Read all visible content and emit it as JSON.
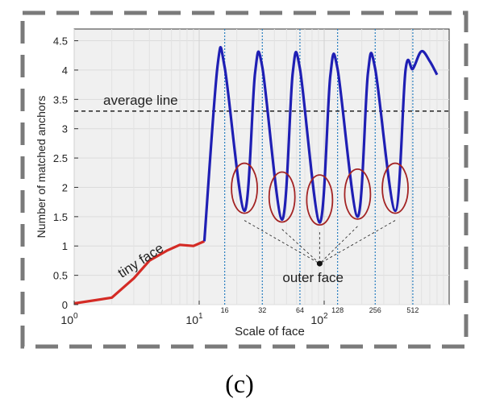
{
  "caption": "(c)",
  "chart_data": {
    "type": "line",
    "xlabel": "Scale of face",
    "ylabel": "Number of matched anchors",
    "x_scale": "log10",
    "xlim": [
      1,
      1000
    ],
    "ylim": [
      0,
      4.7
    ],
    "y_ticks": [
      0,
      0.5,
      1,
      1.5,
      2,
      2.5,
      3,
      3.5,
      4,
      4.5
    ],
    "y_tick_labels": [
      "0",
      "0.5",
      "1",
      "1.5",
      "2",
      "2.5",
      "3",
      "3.5",
      "4",
      "4.5"
    ],
    "x_major_ticks": [
      {
        "base": "10",
        "exp": "0",
        "value": 1
      },
      {
        "base": "10",
        "exp": "1",
        "value": 10
      },
      {
        "base": "10",
        "exp": "2",
        "value": 100
      }
    ],
    "anchor_scales": [
      16,
      32,
      64,
      128,
      256,
      512
    ],
    "anchor_scale_labels": [
      "16",
      "32",
      "64",
      "128",
      "256",
      "512"
    ],
    "grid": true,
    "average_line": {
      "label": "average line",
      "value": 3.3
    },
    "annotations": {
      "tiny_face": "tiny face",
      "outer_face": "outer face"
    },
    "tiny_face_segment": {
      "color": "#d42b25",
      "points": [
        [
          1,
          0.02
        ],
        [
          2,
          0.12
        ],
        [
          3,
          0.45
        ],
        [
          4,
          0.75
        ],
        [
          5.5,
          0.92
        ],
        [
          7,
          1.02
        ],
        [
          9,
          1.0
        ],
        [
          11,
          1.08
        ]
      ]
    },
    "anchor_segment": {
      "color": "#1f1fb4",
      "points": [
        [
          11,
          1.08
        ],
        [
          14,
          4.05
        ],
        [
          16,
          4.05
        ],
        [
          23,
          1.6
        ],
        [
          28,
          3.95
        ],
        [
          32,
          4.05
        ],
        [
          46,
          1.45
        ],
        [
          56,
          3.95
        ],
        [
          64,
          4.02
        ],
        [
          92,
          1.4
        ],
        [
          112,
          3.9
        ],
        [
          128,
          4.02
        ],
        [
          185,
          1.5
        ],
        [
          224,
          3.95
        ],
        [
          256,
          4.02
        ],
        [
          370,
          1.6
        ],
        [
          448,
          4.0
        ],
        [
          512,
          4.02
        ],
        [
          600,
          4.32
        ],
        [
          700,
          4.15
        ],
        [
          800,
          3.92
        ]
      ]
    },
    "circled_minima": [
      {
        "x": 23,
        "y": 1.6
      },
      {
        "x": 46,
        "y": 1.45
      },
      {
        "x": 92,
        "y": 1.4
      },
      {
        "x": 185,
        "y": 1.5
      },
      {
        "x": 370,
        "y": 1.6
      }
    ],
    "outer_face_point": {
      "x": 92,
      "y": 0.7
    }
  }
}
